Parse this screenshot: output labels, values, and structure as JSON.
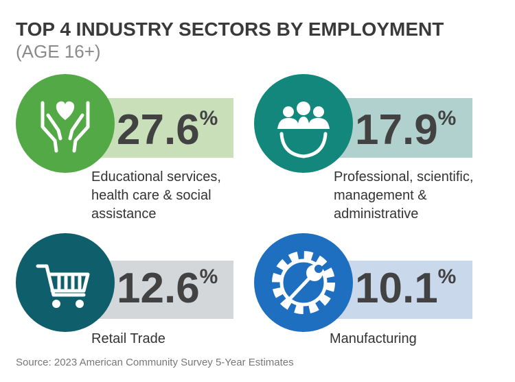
{
  "header": {
    "title": "TOP 4 INDUSTRY SECTORS BY EMPLOYMENT",
    "subtitle": "(AGE 16+)"
  },
  "sectors": [
    {
      "value": 27.6,
      "unit": "%",
      "label_lines": [
        "Educational services,",
        "health care & social",
        "assistance"
      ]
    },
    {
      "value": 17.9,
      "unit": "%",
      "label_lines": [
        "Professional, scientific,",
        "management &",
        "administrative"
      ]
    },
    {
      "value": 12.6,
      "unit": "%",
      "label_lines": [
        "Retail Trade"
      ]
    },
    {
      "value": 10.1,
      "unit": "%",
      "label_lines": [
        "Manufacturing"
      ]
    }
  ],
  "footer": {
    "source": "Source: 2023 American Community Survey 5-Year Estimates"
  }
}
